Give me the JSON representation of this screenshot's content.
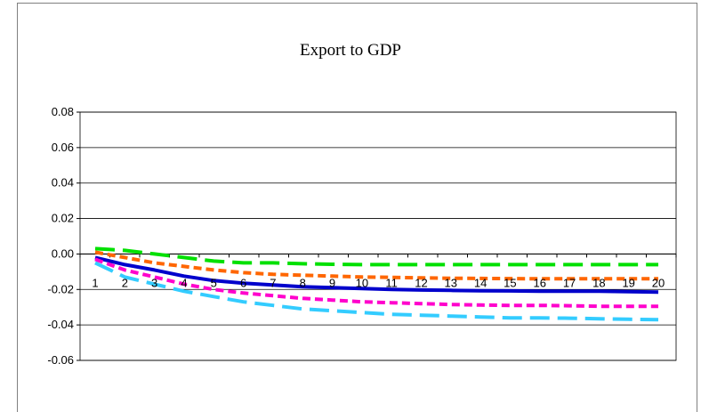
{
  "chart_data": {
    "type": "line",
    "title": "Export to GDP",
    "xlabel": "",
    "ylabel": "",
    "ylim": [
      -0.06,
      0.08
    ],
    "yticks": [
      0.08,
      0.06,
      0.04,
      0.02,
      0.0,
      -0.02,
      -0.04,
      -0.06
    ],
    "ytick_labels": [
      "0.08",
      "0.06",
      "0.04",
      "0.02",
      "0.00",
      "-0.02",
      "-0.04",
      "-0.06"
    ],
    "categories": [
      "1",
      "2",
      "3",
      "4",
      "5",
      "6",
      "7",
      "8",
      "9",
      "10",
      "11",
      "12",
      "13",
      "14",
      "15",
      "16",
      "17",
      "18",
      "19",
      "20"
    ],
    "grid": true,
    "legend": "none",
    "series": [
      {
        "color": "#00e000",
        "style": "longdash",
        "values": [
          0.003,
          0.002,
          0.0,
          -0.002,
          -0.004,
          -0.005,
          -0.005,
          -0.0055,
          -0.0058,
          -0.006,
          -0.006,
          -0.006,
          -0.006,
          -0.006,
          -0.006,
          -0.006,
          -0.006,
          -0.006,
          -0.006,
          -0.006
        ]
      },
      {
        "color": "#ff6600",
        "style": "dash",
        "values": [
          0.001,
          -0.002,
          -0.005,
          -0.007,
          -0.009,
          -0.0105,
          -0.0115,
          -0.012,
          -0.0125,
          -0.013,
          -0.0132,
          -0.0135,
          -0.0137,
          -0.0138,
          -0.0139,
          -0.014,
          -0.014,
          -0.014,
          -0.014,
          -0.014
        ]
      },
      {
        "color": "#0000cc",
        "style": "solid",
        "values": [
          -0.002,
          -0.006,
          -0.009,
          -0.0125,
          -0.015,
          -0.0165,
          -0.0175,
          -0.0185,
          -0.019,
          -0.0195,
          -0.02,
          -0.0203,
          -0.0205,
          -0.0207,
          -0.0208,
          -0.021,
          -0.021,
          -0.021,
          -0.0212,
          -0.0215
        ]
      },
      {
        "color": "#ff00cc",
        "style": "dash",
        "values": [
          -0.003,
          -0.009,
          -0.013,
          -0.017,
          -0.02,
          -0.022,
          -0.0235,
          -0.025,
          -0.026,
          -0.027,
          -0.0275,
          -0.028,
          -0.0285,
          -0.0288,
          -0.029,
          -0.029,
          -0.0292,
          -0.0295,
          -0.0295,
          -0.0295
        ]
      },
      {
        "color": "#33ccff",
        "style": "longdash",
        "values": [
          -0.005,
          -0.013,
          -0.017,
          -0.021,
          -0.024,
          -0.027,
          -0.029,
          -0.031,
          -0.032,
          -0.033,
          -0.034,
          -0.0345,
          -0.035,
          -0.0355,
          -0.036,
          -0.036,
          -0.0362,
          -0.0365,
          -0.0368,
          -0.037
        ]
      }
    ]
  }
}
